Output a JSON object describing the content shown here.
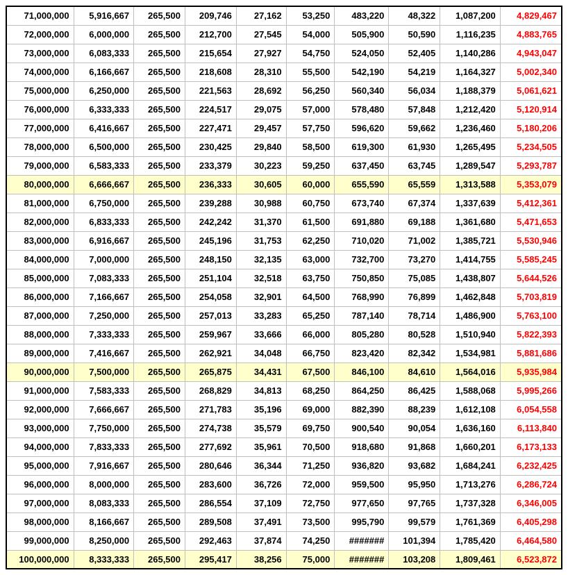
{
  "table": {
    "columns": [
      "col0",
      "col1",
      "col2",
      "col3",
      "col4",
      "col5",
      "col6",
      "col7",
      "col8",
      "col9"
    ],
    "last_col_color": "#ff0000",
    "highlight_bg": "#ffffcc",
    "border_color": "#bfbfbf",
    "outer_border_color": "#000000",
    "font_size": 13,
    "font_weight": "bold",
    "rows": [
      {
        "hl": false,
        "cells": [
          "71,000,000",
          "5,916,667",
          "265,500",
          "209,746",
          "27,162",
          "53,250",
          "483,220",
          "48,322",
          "1,087,200",
          "4,829,467"
        ]
      },
      {
        "hl": false,
        "cells": [
          "72,000,000",
          "6,000,000",
          "265,500",
          "212,700",
          "27,545",
          "54,000",
          "505,900",
          "50,590",
          "1,116,235",
          "4,883,765"
        ]
      },
      {
        "hl": false,
        "cells": [
          "73,000,000",
          "6,083,333",
          "265,500",
          "215,654",
          "27,927",
          "54,750",
          "524,050",
          "52,405",
          "1,140,286",
          "4,943,047"
        ]
      },
      {
        "hl": false,
        "cells": [
          "74,000,000",
          "6,166,667",
          "265,500",
          "218,608",
          "28,310",
          "55,500",
          "542,190",
          "54,219",
          "1,164,327",
          "5,002,340"
        ]
      },
      {
        "hl": false,
        "cells": [
          "75,000,000",
          "6,250,000",
          "265,500",
          "221,563",
          "28,692",
          "56,250",
          "560,340",
          "56,034",
          "1,188,379",
          "5,061,621"
        ]
      },
      {
        "hl": false,
        "cells": [
          "76,000,000",
          "6,333,333",
          "265,500",
          "224,517",
          "29,075",
          "57,000",
          "578,480",
          "57,848",
          "1,212,420",
          "5,120,914"
        ]
      },
      {
        "hl": false,
        "cells": [
          "77,000,000",
          "6,416,667",
          "265,500",
          "227,471",
          "29,457",
          "57,750",
          "596,620",
          "59,662",
          "1,236,460",
          "5,180,206"
        ]
      },
      {
        "hl": false,
        "cells": [
          "78,000,000",
          "6,500,000",
          "265,500",
          "230,425",
          "29,840",
          "58,500",
          "619,300",
          "61,930",
          "1,265,495",
          "5,234,505"
        ]
      },
      {
        "hl": false,
        "cells": [
          "79,000,000",
          "6,583,333",
          "265,500",
          "233,379",
          "30,223",
          "59,250",
          "637,450",
          "63,745",
          "1,289,547",
          "5,293,787"
        ]
      },
      {
        "hl": true,
        "cells": [
          "80,000,000",
          "6,666,667",
          "265,500",
          "236,333",
          "30,605",
          "60,000",
          "655,590",
          "65,559",
          "1,313,588",
          "5,353,079"
        ]
      },
      {
        "hl": false,
        "cells": [
          "81,000,000",
          "6,750,000",
          "265,500",
          "239,288",
          "30,988",
          "60,750",
          "673,740",
          "67,374",
          "1,337,639",
          "5,412,361"
        ]
      },
      {
        "hl": false,
        "cells": [
          "82,000,000",
          "6,833,333",
          "265,500",
          "242,242",
          "31,370",
          "61,500",
          "691,880",
          "69,188",
          "1,361,680",
          "5,471,653"
        ]
      },
      {
        "hl": false,
        "cells": [
          "83,000,000",
          "6,916,667",
          "265,500",
          "245,196",
          "31,753",
          "62,250",
          "710,020",
          "71,002",
          "1,385,721",
          "5,530,946"
        ]
      },
      {
        "hl": false,
        "cells": [
          "84,000,000",
          "7,000,000",
          "265,500",
          "248,150",
          "32,135",
          "63,000",
          "732,700",
          "73,270",
          "1,414,755",
          "5,585,245"
        ]
      },
      {
        "hl": false,
        "cells": [
          "85,000,000",
          "7,083,333",
          "265,500",
          "251,104",
          "32,518",
          "63,750",
          "750,850",
          "75,085",
          "1,438,807",
          "5,644,526"
        ]
      },
      {
        "hl": false,
        "cells": [
          "86,000,000",
          "7,166,667",
          "265,500",
          "254,058",
          "32,901",
          "64,500",
          "768,990",
          "76,899",
          "1,462,848",
          "5,703,819"
        ]
      },
      {
        "hl": false,
        "cells": [
          "87,000,000",
          "7,250,000",
          "265,500",
          "257,013",
          "33,283",
          "65,250",
          "787,140",
          "78,714",
          "1,486,900",
          "5,763,100"
        ]
      },
      {
        "hl": false,
        "cells": [
          "88,000,000",
          "7,333,333",
          "265,500",
          "259,967",
          "33,666",
          "66,000",
          "805,280",
          "80,528",
          "1,510,940",
          "5,822,393"
        ]
      },
      {
        "hl": false,
        "cells": [
          "89,000,000",
          "7,416,667",
          "265,500",
          "262,921",
          "34,048",
          "66,750",
          "823,420",
          "82,342",
          "1,534,981",
          "5,881,686"
        ]
      },
      {
        "hl": true,
        "cells": [
          "90,000,000",
          "7,500,000",
          "265,500",
          "265,875",
          "34,431",
          "67,500",
          "846,100",
          "84,610",
          "1,564,016",
          "5,935,984"
        ]
      },
      {
        "hl": false,
        "cells": [
          "91,000,000",
          "7,583,333",
          "265,500",
          "268,829",
          "34,813",
          "68,250",
          "864,250",
          "86,425",
          "1,588,068",
          "5,995,266"
        ]
      },
      {
        "hl": false,
        "cells": [
          "92,000,000",
          "7,666,667",
          "265,500",
          "271,783",
          "35,196",
          "69,000",
          "882,390",
          "88,239",
          "1,612,108",
          "6,054,558"
        ]
      },
      {
        "hl": false,
        "cells": [
          "93,000,000",
          "7,750,000",
          "265,500",
          "274,738",
          "35,579",
          "69,750",
          "900,540",
          "90,054",
          "1,636,160",
          "6,113,840"
        ]
      },
      {
        "hl": false,
        "cells": [
          "94,000,000",
          "7,833,333",
          "265,500",
          "277,692",
          "35,961",
          "70,500",
          "918,680",
          "91,868",
          "1,660,201",
          "6,173,133"
        ]
      },
      {
        "hl": false,
        "cells": [
          "95,000,000",
          "7,916,667",
          "265,500",
          "280,646",
          "36,344",
          "71,250",
          "936,820",
          "93,682",
          "1,684,241",
          "6,232,425"
        ]
      },
      {
        "hl": false,
        "cells": [
          "96,000,000",
          "8,000,000",
          "265,500",
          "283,600",
          "36,726",
          "72,000",
          "959,500",
          "95,950",
          "1,713,276",
          "6,286,724"
        ]
      },
      {
        "hl": false,
        "cells": [
          "97,000,000",
          "8,083,333",
          "265,500",
          "286,554",
          "37,109",
          "72,750",
          "977,650",
          "97,765",
          "1,737,328",
          "6,346,005"
        ]
      },
      {
        "hl": false,
        "cells": [
          "98,000,000",
          "8,166,667",
          "265,500",
          "289,508",
          "37,491",
          "73,500",
          "995,790",
          "99,579",
          "1,761,369",
          "6,405,298"
        ]
      },
      {
        "hl": false,
        "cells": [
          "99,000,000",
          "8,250,000",
          "265,500",
          "292,463",
          "37,874",
          "74,250",
          "#######",
          "101,394",
          "1,785,420",
          "6,464,580"
        ]
      },
      {
        "hl": true,
        "cells": [
          "100,000,000",
          "8,333,333",
          "265,500",
          "295,417",
          "38,256",
          "75,000",
          "#######",
          "103,208",
          "1,809,461",
          "6,523,872"
        ]
      }
    ]
  }
}
